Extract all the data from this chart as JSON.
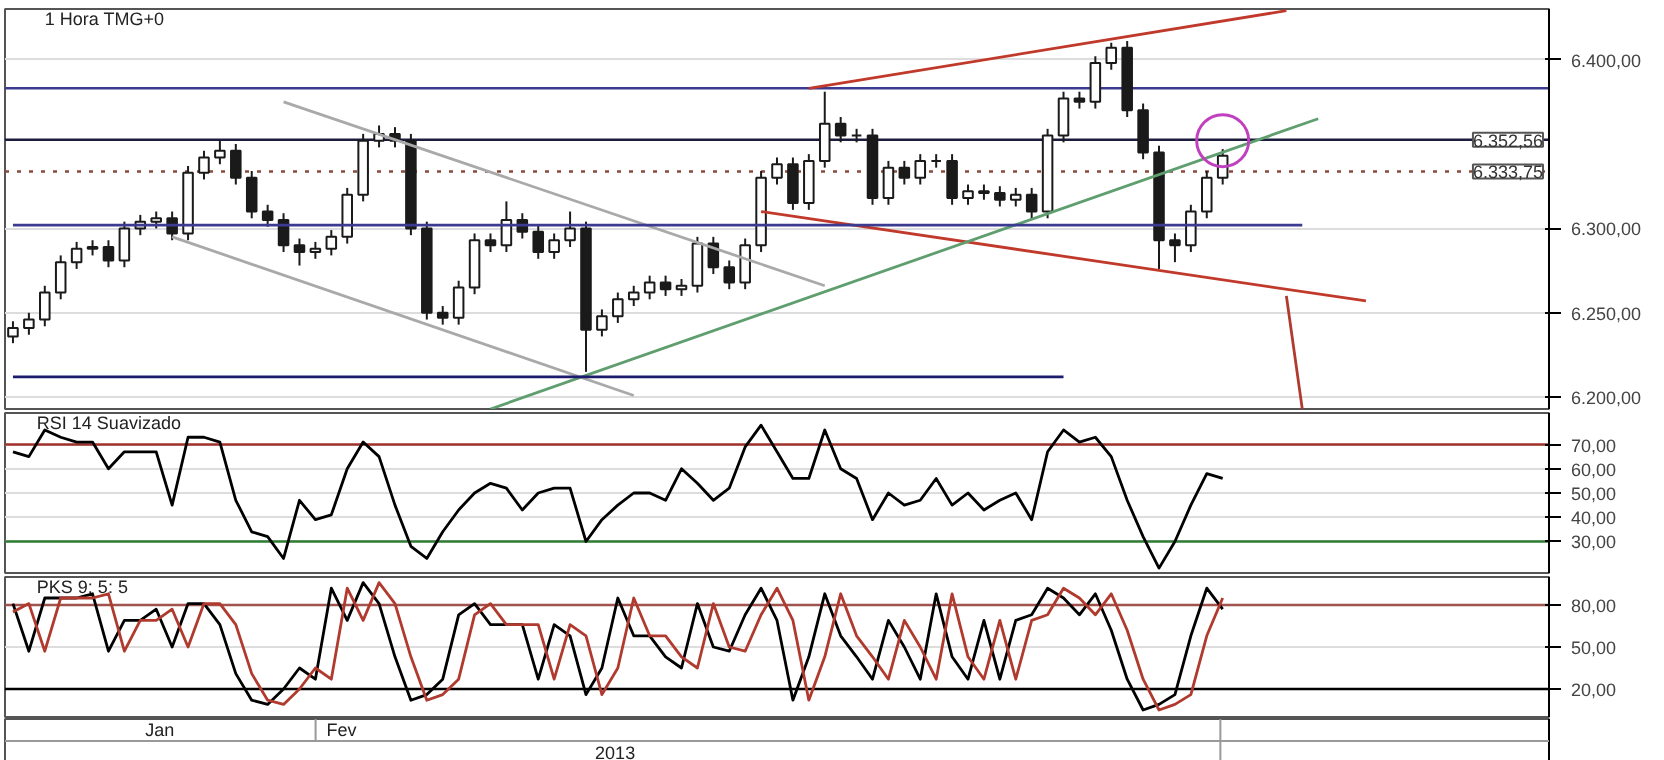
{
  "chart_data": [
    {
      "type": "candlestick",
      "title": "1 Hora TMG+0",
      "color": "#1a1a1a",
      "grid": "y",
      "tick_labels": "y",
      "categories": [
        null,
        null,
        null,
        null,
        null,
        null,
        null,
        null,
        null,
        null,
        null,
        null,
        null,
        null,
        null,
        null,
        null,
        null,
        null,
        null,
        null,
        null,
        null,
        null,
        null,
        null,
        null,
        null,
        null,
        null,
        null,
        null,
        null,
        null,
        null,
        null,
        null,
        null,
        null,
        null,
        null,
        null,
        null,
        null,
        null,
        null,
        null,
        null,
        null,
        null,
        null,
        null,
        null,
        null,
        null,
        null,
        null,
        null,
        null,
        null,
        null,
        null,
        null,
        null,
        null,
        null,
        null,
        null,
        null,
        null,
        null,
        null,
        null,
        null,
        null,
        null,
        null,
        null,
        null,
        null,
        null,
        null,
        null,
        null,
        null,
        null,
        null,
        null,
        null,
        null,
        null,
        null,
        null,
        null,
        null,
        null,
        null
      ],
      "ohlc": [
        [
          6236,
          6245,
          6232,
          6241
        ],
        [
          6241,
          6250,
          6237,
          6246
        ],
        [
          6246,
          6266,
          6242,
          6262
        ],
        [
          6262,
          6284,
          6258,
          6280
        ],
        [
          6280,
          6292,
          6276,
          6288
        ],
        [
          6288,
          6293,
          6284,
          6289
        ],
        [
          6289,
          6293,
          6277,
          6281
        ],
        [
          6281,
          6304,
          6277,
          6300
        ],
        [
          6300,
          6308,
          6296,
          6304
        ],
        [
          6304,
          6310,
          6300,
          6306
        ],
        [
          6306,
          6310,
          6293,
          6297
        ],
        [
          6297,
          6337,
          6293,
          6333
        ],
        [
          6333,
          6346,
          6329,
          6342
        ],
        [
          6342,
          6352,
          6338,
          6346
        ],
        [
          6346,
          6350,
          6326,
          6330
        ],
        [
          6330,
          6334,
          6306,
          6310
        ],
        [
          6310,
          6314,
          6301,
          6305
        ],
        [
          6305,
          6309,
          6286,
          6290
        ],
        [
          6290,
          6294,
          6278,
          6286
        ],
        [
          6286,
          6292,
          6282,
          6288
        ],
        [
          6288,
          6299,
          6284,
          6295
        ],
        [
          6295,
          6324,
          6291,
          6320
        ],
        [
          6320,
          6356,
          6316,
          6352
        ],
        [
          6352,
          6361,
          6348,
          6356
        ],
        [
          6356,
          6360,
          6348,
          6352
        ],
        [
          6352,
          6356,
          6296,
          6300
        ],
        [
          6300,
          6304,
          6246,
          6250
        ],
        [
          6250,
          6254,
          6243,
          6247
        ],
        [
          6247,
          6269,
          6243,
          6265
        ],
        [
          6265,
          6297,
          6261,
          6293
        ],
        [
          6293,
          6297,
          6286,
          6290
        ],
        [
          6290,
          6316,
          6286,
          6305
        ],
        [
          6305,
          6309,
          6294,
          6298
        ],
        [
          6298,
          6302,
          6282,
          6286
        ],
        [
          6286,
          6297,
          6282,
          6293
        ],
        [
          6293,
          6310,
          6289,
          6300
        ],
        [
          6300,
          6304,
          6215,
          6240
        ],
        [
          6240,
          6252,
          6236,
          6248
        ],
        [
          6248,
          6262,
          6244,
          6258
        ],
        [
          6258,
          6266,
          6254,
          6262
        ],
        [
          6262,
          6272,
          6258,
          6268
        ],
        [
          6268,
          6272,
          6260,
          6264
        ],
        [
          6264,
          6270,
          6260,
          6266
        ],
        [
          6266,
          6295,
          6262,
          6291
        ],
        [
          6291,
          6295,
          6273,
          6277
        ],
        [
          6277,
          6281,
          6264,
          6268
        ],
        [
          6268,
          6294,
          6264,
          6290
        ],
        [
          6290,
          6334,
          6286,
          6330
        ],
        [
          6330,
          6342,
          6326,
          6338
        ],
        [
          6338,
          6342,
          6311,
          6315
        ],
        [
          6315,
          6344,
          6311,
          6340
        ],
        [
          6340,
          6381,
          6336,
          6362
        ],
        [
          6362,
          6366,
          6351,
          6355
        ],
        [
          6355,
          6359,
          6351,
          6355
        ],
        [
          6355,
          6359,
          6314,
          6318
        ],
        [
          6318,
          6340,
          6314,
          6336
        ],
        [
          6336,
          6340,
          6326,
          6330
        ],
        [
          6330,
          6344,
          6326,
          6340
        ],
        [
          6340,
          6344,
          6336,
          6340
        ],
        [
          6340,
          6344,
          6314,
          6318
        ],
        [
          6318,
          6326,
          6314,
          6322
        ],
        [
          6322,
          6326,
          6317,
          6321
        ],
        [
          6321,
          6325,
          6313,
          6317
        ],
        [
          6317,
          6324,
          6313,
          6320
        ],
        [
          6320,
          6324,
          6306,
          6310
        ],
        [
          6310,
          6359,
          6306,
          6355
        ],
        [
          6355,
          6381,
          6351,
          6377
        ],
        [
          6377,
          6381,
          6371,
          6375
        ],
        [
          6375,
          6402,
          6371,
          6398
        ],
        [
          6398,
          6410,
          6394,
          6407
        ],
        [
          6407,
          6411,
          6366,
          6370
        ],
        [
          6370,
          6374,
          6341,
          6345
        ],
        [
          6345,
          6349,
          6276,
          6293
        ],
        [
          6293,
          6297,
          6280,
          6290
        ],
        [
          6290,
          6314,
          6286,
          6310
        ],
        [
          6310,
          6334,
          6306,
          6330
        ],
        [
          6330,
          6347,
          6326,
          6343
        ],
        null,
        null,
        null,
        null,
        null,
        null,
        null,
        null,
        null,
        null,
        null,
        null,
        null,
        null,
        null,
        null,
        null,
        null,
        null,
        null
      ],
      "series": [
        {
          "type": "line",
          "color": "#c0392b",
          "values": [
            null,
            null,
            null,
            null,
            null,
            null,
            null,
            null,
            null,
            null,
            null,
            null,
            null,
            null,
            null,
            null,
            null,
            null,
            null,
            null,
            null,
            null,
            null,
            null,
            null,
            null,
            null,
            null,
            null,
            null,
            null,
            null,
            null,
            null,
            null,
            null,
            null,
            null,
            null,
            null,
            null,
            null,
            null,
            null,
            null,
            null,
            null,
            null,
            null,
            null,
            6383,
            null,
            null,
            null,
            null,
            null,
            null,
            null,
            null,
            null,
            null,
            null,
            null,
            null,
            null,
            null,
            null,
            null,
            null,
            null,
            null,
            null,
            null,
            null,
            null,
            null,
            null,
            null,
            null,
            null,
            6429,
            null,
            null,
            null,
            null,
            null,
            null,
            null,
            null,
            null,
            null,
            null,
            null,
            null,
            null,
            null,
            null
          ]
        },
        {
          "type": "line",
          "color": "#c0392b",
          "values": [
            null,
            null,
            null,
            null,
            null,
            null,
            null,
            null,
            null,
            null,
            null,
            null,
            null,
            null,
            null,
            null,
            null,
            null,
            null,
            null,
            null,
            null,
            null,
            null,
            null,
            null,
            null,
            null,
            null,
            null,
            null,
            null,
            null,
            null,
            null,
            null,
            null,
            null,
            null,
            null,
            null,
            null,
            null,
            null,
            null,
            null,
            null,
            6310,
            null,
            null,
            null,
            null,
            null,
            null,
            null,
            null,
            null,
            null,
            null,
            null,
            null,
            null,
            null,
            null,
            null,
            null,
            null,
            null,
            null,
            null,
            null,
            null,
            null,
            null,
            null,
            null,
            null,
            null,
            null,
            null,
            null,
            null,
            null,
            null,
            null,
            6257,
            null,
            null,
            null,
            null,
            null,
            null,
            null,
            null,
            null,
            null,
            null
          ]
        },
        {
          "type": "line",
          "color": "#5f9e6e",
          "values": [
            null,
            null,
            null,
            null,
            null,
            null,
            null,
            null,
            null,
            null,
            null,
            null,
            null,
            null,
            null,
            null,
            null,
            null,
            null,
            null,
            null,
            null,
            null,
            null,
            null,
            null,
            null,
            null,
            null,
            null,
            6193,
            null,
            null,
            null,
            null,
            null,
            null,
            null,
            null,
            null,
            null,
            null,
            null,
            null,
            null,
            null,
            null,
            null,
            null,
            null,
            null,
            null,
            null,
            null,
            null,
            null,
            null,
            null,
            null,
            null,
            null,
            null,
            null,
            null,
            null,
            null,
            null,
            null,
            null,
            null,
            null,
            null,
            null,
            null,
            null,
            null,
            null,
            null,
            null,
            null,
            null,
            null,
            6365,
            null,
            null,
            null,
            null,
            null,
            null,
            null,
            null,
            null,
            null,
            null,
            null,
            null,
            null
          ]
        },
        {
          "type": "line",
          "color": "#a9a9a9",
          "values": [
            null,
            null,
            null,
            null,
            null,
            null,
            null,
            null,
            null,
            null,
            null,
            null,
            null,
            null,
            null,
            null,
            null,
            6375,
            null,
            null,
            null,
            null,
            null,
            null,
            null,
            null,
            null,
            null,
            null,
            null,
            null,
            null,
            null,
            null,
            null,
            null,
            null,
            null,
            null,
            null,
            null,
            null,
            null,
            null,
            null,
            null,
            null,
            null,
            null,
            null,
            null,
            6266,
            null,
            null,
            null,
            null,
            null,
            null,
            null,
            null,
            null,
            null,
            null,
            null,
            null,
            null,
            null,
            null,
            null,
            null,
            null,
            null,
            null,
            null,
            null,
            null,
            null,
            null,
            null,
            null,
            null,
            null,
            null,
            null,
            null,
            null,
            null,
            null,
            null,
            null,
            null,
            null,
            null,
            null,
            null,
            null,
            null
          ]
        },
        {
          "type": "line",
          "color": "#a9a9a9",
          "values": [
            null,
            null,
            null,
            null,
            null,
            null,
            null,
            null,
            null,
            null,
            6295,
            null,
            null,
            null,
            null,
            null,
            null,
            null,
            null,
            null,
            null,
            null,
            null,
            null,
            null,
            null,
            null,
            null,
            null,
            null,
            null,
            null,
            null,
            null,
            null,
            null,
            null,
            null,
            null,
            6201,
            null,
            null,
            null,
            null,
            null,
            null,
            null,
            null,
            null,
            null,
            null,
            null,
            null,
            null,
            null,
            null,
            null,
            null,
            null,
            null,
            null,
            null,
            null,
            null,
            null,
            null,
            null,
            null,
            null,
            null,
            null,
            null,
            null,
            null,
            null,
            null,
            null,
            null,
            null,
            null,
            null,
            null,
            null,
            null,
            null,
            null,
            null,
            null,
            null,
            null,
            null,
            null,
            null,
            null,
            null,
            null,
            null
          ]
        },
        {
          "type": "line",
          "color": "#b03a2e",
          "values": [
            null,
            null,
            null,
            null,
            null,
            null,
            null,
            null,
            null,
            null,
            null,
            null,
            null,
            null,
            null,
            null,
            null,
            null,
            null,
            null,
            null,
            null,
            null,
            null,
            null,
            null,
            null,
            null,
            null,
            null,
            null,
            null,
            null,
            null,
            null,
            null,
            null,
            null,
            null,
            null,
            null,
            null,
            null,
            null,
            null,
            null,
            null,
            null,
            null,
            null,
            null,
            null,
            null,
            null,
            null,
            null,
            null,
            null,
            null,
            null,
            null,
            null,
            null,
            null,
            null,
            null,
            null,
            null,
            null,
            null,
            null,
            null,
            null,
            null,
            null,
            null,
            null,
            null,
            null,
            null,
            6260,
            6193,
            null,
            null,
            null,
            null,
            null,
            null,
            null,
            null,
            null,
            null,
            null,
            null,
            null,
            null,
            null
          ]
        },
        {
          "type": "line",
          "color": "#3b3b8f",
          "values": [
            6302,
            null,
            null,
            null,
            null,
            null,
            null,
            null,
            null,
            null,
            null,
            null,
            null,
            null,
            null,
            null,
            null,
            null,
            null,
            null,
            null,
            null,
            null,
            null,
            null,
            null,
            null,
            null,
            null,
            null,
            null,
            null,
            null,
            null,
            null,
            null,
            null,
            null,
            null,
            null,
            null,
            null,
            null,
            null,
            null,
            null,
            null,
            null,
            null,
            null,
            null,
            null,
            null,
            null,
            null,
            null,
            null,
            null,
            null,
            null,
            null,
            null,
            null,
            null,
            null,
            null,
            null,
            null,
            null,
            null,
            null,
            null,
            null,
            null,
            null,
            null,
            null,
            null,
            null,
            null,
            null,
            6302,
            null,
            null,
            null,
            null,
            null,
            null,
            null,
            null,
            null,
            null,
            null,
            null,
            null,
            null,
            null
          ]
        },
        {
          "type": "line",
          "color": "#1c1c6c",
          "values": [
            6212,
            null,
            null,
            null,
            null,
            null,
            null,
            null,
            null,
            null,
            null,
            null,
            null,
            null,
            null,
            null,
            null,
            null,
            null,
            null,
            null,
            null,
            null,
            null,
            null,
            null,
            null,
            null,
            null,
            null,
            null,
            null,
            null,
            null,
            null,
            null,
            null,
            null,
            null,
            null,
            null,
            null,
            null,
            null,
            null,
            null,
            null,
            null,
            null,
            null,
            null,
            null,
            null,
            null,
            null,
            null,
            null,
            null,
            null,
            null,
            null,
            null,
            null,
            null,
            null,
            null,
            6212,
            null,
            null,
            null,
            null,
            null,
            null,
            null,
            null,
            null,
            null,
            null,
            null,
            null,
            null,
            null,
            null,
            null,
            null,
            null,
            null,
            null,
            null,
            null,
            null,
            null,
            null,
            null,
            null,
            null,
            null
          ]
        },
        {
          "type": "scatter",
          "color": "#c040c0",
          "marker": "circle",
          "values": [
            null,
            null,
            null,
            null,
            null,
            null,
            null,
            null,
            null,
            null,
            null,
            null,
            null,
            null,
            null,
            null,
            null,
            null,
            null,
            null,
            null,
            null,
            null,
            null,
            null,
            null,
            null,
            null,
            null,
            null,
            null,
            null,
            null,
            null,
            null,
            null,
            null,
            null,
            null,
            null,
            null,
            null,
            null,
            null,
            null,
            null,
            null,
            null,
            null,
            null,
            null,
            null,
            null,
            null,
            null,
            null,
            null,
            null,
            null,
            null,
            null,
            null,
            null,
            null,
            null,
            null,
            null,
            null,
            null,
            null,
            null,
            null,
            null,
            null,
            null,
            null,
            6352,
            null,
            null,
            null,
            null,
            null,
            null,
            null,
            null,
            null,
            null,
            null,
            null,
            null,
            null,
            null,
            null,
            null,
            null,
            null,
            null
          ]
        }
      ],
      "ref_lines": [
        {
          "axis": "y",
          "value": 6383,
          "label": null,
          "color": "#3b3b8f"
        },
        {
          "axis": "y",
          "value": 6352.56,
          "label": "6.352,56",
          "color": "#1c1c3c"
        },
        {
          "axis": "y",
          "value": 6333.75,
          "label": "6.333,75",
          "color": "#8b4a3a",
          "line_style": "dotted"
        }
      ],
      "ylim": [
        6193,
        6430
      ],
      "yticks": [
        {
          "value": 6200,
          "label": "6.200,00"
        },
        {
          "value": 6250,
          "label": "6.250,00"
        },
        {
          "value": 6300,
          "label": "6.300,00"
        },
        {
          "value": 6400,
          "label": "6.400,00"
        }
      ]
    },
    {
      "type": "line",
      "title": "RSI 14 Suavizado",
      "grid": "y",
      "tick_labels": "y",
      "categories": [
        null,
        null,
        null,
        null,
        null,
        null,
        null,
        null,
        null,
        null,
        null,
        null,
        null,
        null,
        null,
        null,
        null,
        null,
        null,
        null,
        null,
        null,
        null,
        null,
        null,
        null,
        null,
        null,
        null,
        null,
        null,
        null,
        null,
        null,
        null,
        null,
        null,
        null,
        null,
        null,
        null,
        null,
        null,
        null,
        null,
        null,
        null,
        null,
        null,
        null,
        null,
        null,
        null,
        null,
        null,
        null,
        null,
        null,
        null,
        null,
        null,
        null,
        null,
        null,
        null,
        null,
        null,
        null,
        null,
        null,
        null,
        null,
        null,
        null,
        null,
        null,
        null,
        null,
        null,
        null,
        null,
        null,
        null,
        null,
        null,
        null,
        null,
        null,
        null,
        null,
        null,
        null,
        null,
        null,
        null,
        null,
        null
      ],
      "series": [
        {
          "color": "#000000",
          "values": [
            67,
            65,
            76,
            73,
            71,
            71,
            60,
            67,
            67,
            67,
            45,
            73,
            73,
            71,
            47,
            34,
            32,
            23,
            47,
            39,
            41,
            60,
            71,
            65,
            45,
            28,
            23,
            34,
            43,
            50,
            54,
            52,
            43,
            50,
            52,
            52,
            30,
            39,
            45,
            50,
            50,
            47,
            60,
            54,
            47,
            52,
            69,
            78,
            67,
            56,
            56,
            76,
            60,
            56,
            39,
            50,
            45,
            47,
            56,
            45,
            50,
            43,
            47,
            50,
            39,
            67,
            76,
            71,
            73,
            65,
            47,
            32,
            19,
            30,
            45,
            58,
            56,
            null,
            null,
            null,
            null,
            null,
            null,
            null,
            null,
            null,
            null,
            null,
            null,
            null,
            null,
            null,
            null,
            null,
            null,
            null,
            null
          ]
        }
      ],
      "ref_lines": [
        {
          "axis": "y",
          "value": 70,
          "label": null,
          "color": "#a0302a"
        },
        {
          "axis": "y",
          "value": 30,
          "label": null,
          "color": "#2e7d32"
        }
      ],
      "ylim": [
        17,
        83
      ],
      "yticks": [
        {
          "value": 30,
          "label": "30,00"
        },
        {
          "value": 40,
          "label": "40,00"
        },
        {
          "value": 50,
          "label": "50,00"
        },
        {
          "value": 60,
          "label": "60,00"
        },
        {
          "value": 70,
          "label": "70,00"
        }
      ]
    },
    {
      "type": "line",
      "title": "PKS 9: 5: 5",
      "grid": "y",
      "tick_labels": "y",
      "annotations": [
        "Jan",
        "Fev",
        "2013"
      ],
      "categories": [
        null,
        null,
        null,
        null,
        null,
        null,
        null,
        null,
        null,
        null,
        null,
        null,
        null,
        null,
        null,
        null,
        null,
        null,
        null,
        null,
        null,
        null,
        null,
        null,
        null,
        null,
        null,
        null,
        null,
        null,
        null,
        null,
        null,
        null,
        null,
        null,
        null,
        null,
        null,
        null,
        null,
        null,
        null,
        null,
        null,
        null,
        null,
        null,
        null,
        null,
        null,
        null,
        null,
        null,
        null,
        null,
        null,
        null,
        null,
        null,
        null,
        null,
        null,
        null,
        null,
        null,
        null,
        null,
        null,
        null,
        null,
        null,
        null,
        null,
        null,
        null,
        null,
        null,
        null,
        null,
        null,
        null,
        null,
        null,
        null,
        null,
        null,
        null,
        null,
        null,
        null,
        null,
        null,
        null,
        null,
        null,
        null
      ],
      "series": [
        {
          "color": "#000000",
          "values": [
            81,
            47,
            85,
            85,
            85,
            88,
            47,
            69,
            69,
            77,
            50,
            81,
            81,
            66,
            31,
            12,
            9,
            20,
            35,
            27,
            92,
            69,
            96,
            81,
            43,
            12,
            16,
            27,
            73,
            81,
            66,
            66,
            66,
            27,
            66,
            58,
            16,
            35,
            85,
            58,
            58,
            43,
            35,
            81,
            50,
            47,
            73,
            92,
            69,
            12,
            43,
            88,
            58,
            43,
            27,
            69,
            50,
            27,
            88,
            43,
            27,
            69,
            27,
            69,
            73,
            92,
            85,
            73,
            88,
            62,
            27,
            5,
            9,
            16,
            58,
            92,
            77,
            null,
            null,
            null,
            null,
            null,
            null,
            null,
            null,
            null,
            null,
            null,
            null,
            null,
            null,
            null,
            null,
            null,
            null,
            null,
            null
          ]
        },
        {
          "color": "#b03a2e",
          "values": [
            75,
            81,
            47,
            85,
            85,
            85,
            88,
            47,
            69,
            69,
            77,
            50,
            81,
            81,
            66,
            31,
            12,
            9,
            20,
            35,
            27,
            92,
            69,
            96,
            81,
            43,
            12,
            16,
            27,
            73,
            81,
            66,
            66,
            66,
            27,
            66,
            58,
            16,
            35,
            85,
            58,
            58,
            43,
            35,
            81,
            50,
            47,
            73,
            92,
            69,
            12,
            43,
            88,
            58,
            43,
            27,
            69,
            50,
            27,
            88,
            43,
            27,
            69,
            27,
            69,
            73,
            92,
            85,
            73,
            88,
            62,
            27,
            5,
            9,
            16,
            58,
            85,
            null,
            null,
            null,
            null,
            null,
            null,
            null,
            null,
            null,
            null,
            null,
            null,
            null,
            null,
            null,
            null,
            null,
            null,
            null,
            null
          ]
        }
      ],
      "ref_lines": [
        {
          "axis": "y",
          "value": 80,
          "label": null,
          "color": "#a0524d"
        },
        {
          "axis": "y",
          "value": 20,
          "label": null,
          "color": "#000000"
        }
      ],
      "ylim": [
        0,
        100
      ],
      "yticks": [
        {
          "value": 20,
          "label": "20,00"
        },
        {
          "value": 50,
          "label": "50,00"
        },
        {
          "value": 80,
          "label": "80,00"
        }
      ]
    }
  ]
}
